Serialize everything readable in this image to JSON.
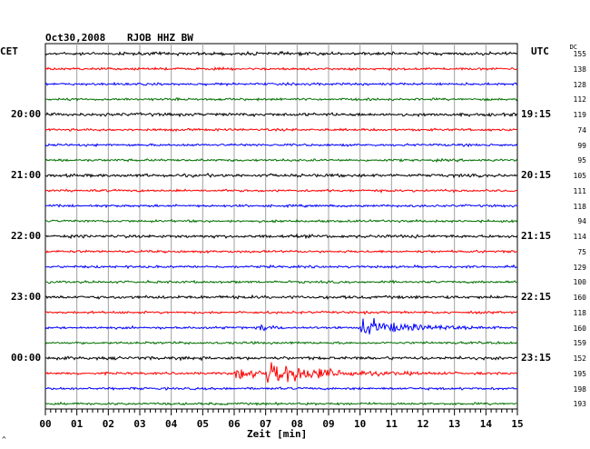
{
  "header": {
    "date": "Oct30,2008",
    "station": "RJOB HHZ BW",
    "left_zone": "CET",
    "right_zone": "UTC",
    "dc_label": "DC"
  },
  "left_times": [
    "20:00",
    "21:00",
    "22:00",
    "23:00",
    "00:00"
  ],
  "right_times": [
    "19:15",
    "20:15",
    "21:15",
    "22:15",
    "23:15"
  ],
  "dc_values": [
    "155",
    "138",
    "128",
    "112",
    "119",
    "74",
    "99",
    "95",
    "105",
    "111",
    "118",
    "94",
    "114",
    "75",
    "129",
    "100",
    "160",
    "118",
    "160",
    "159",
    "152",
    "195",
    "198",
    "193"
  ],
  "x_axis": {
    "label": "Zeit [min]",
    "ticks": [
      "00",
      "01",
      "02",
      "03",
      "04",
      "05",
      "06",
      "07",
      "08",
      "09",
      "10",
      "11",
      "12",
      "13",
      "14",
      "15"
    ]
  },
  "footer_mark": "^",
  "colors": {
    "trace_cycle": [
      "#000000",
      "#ff0000",
      "#0000ff",
      "#007000"
    ],
    "grid": "#a0a0a0"
  }
}
